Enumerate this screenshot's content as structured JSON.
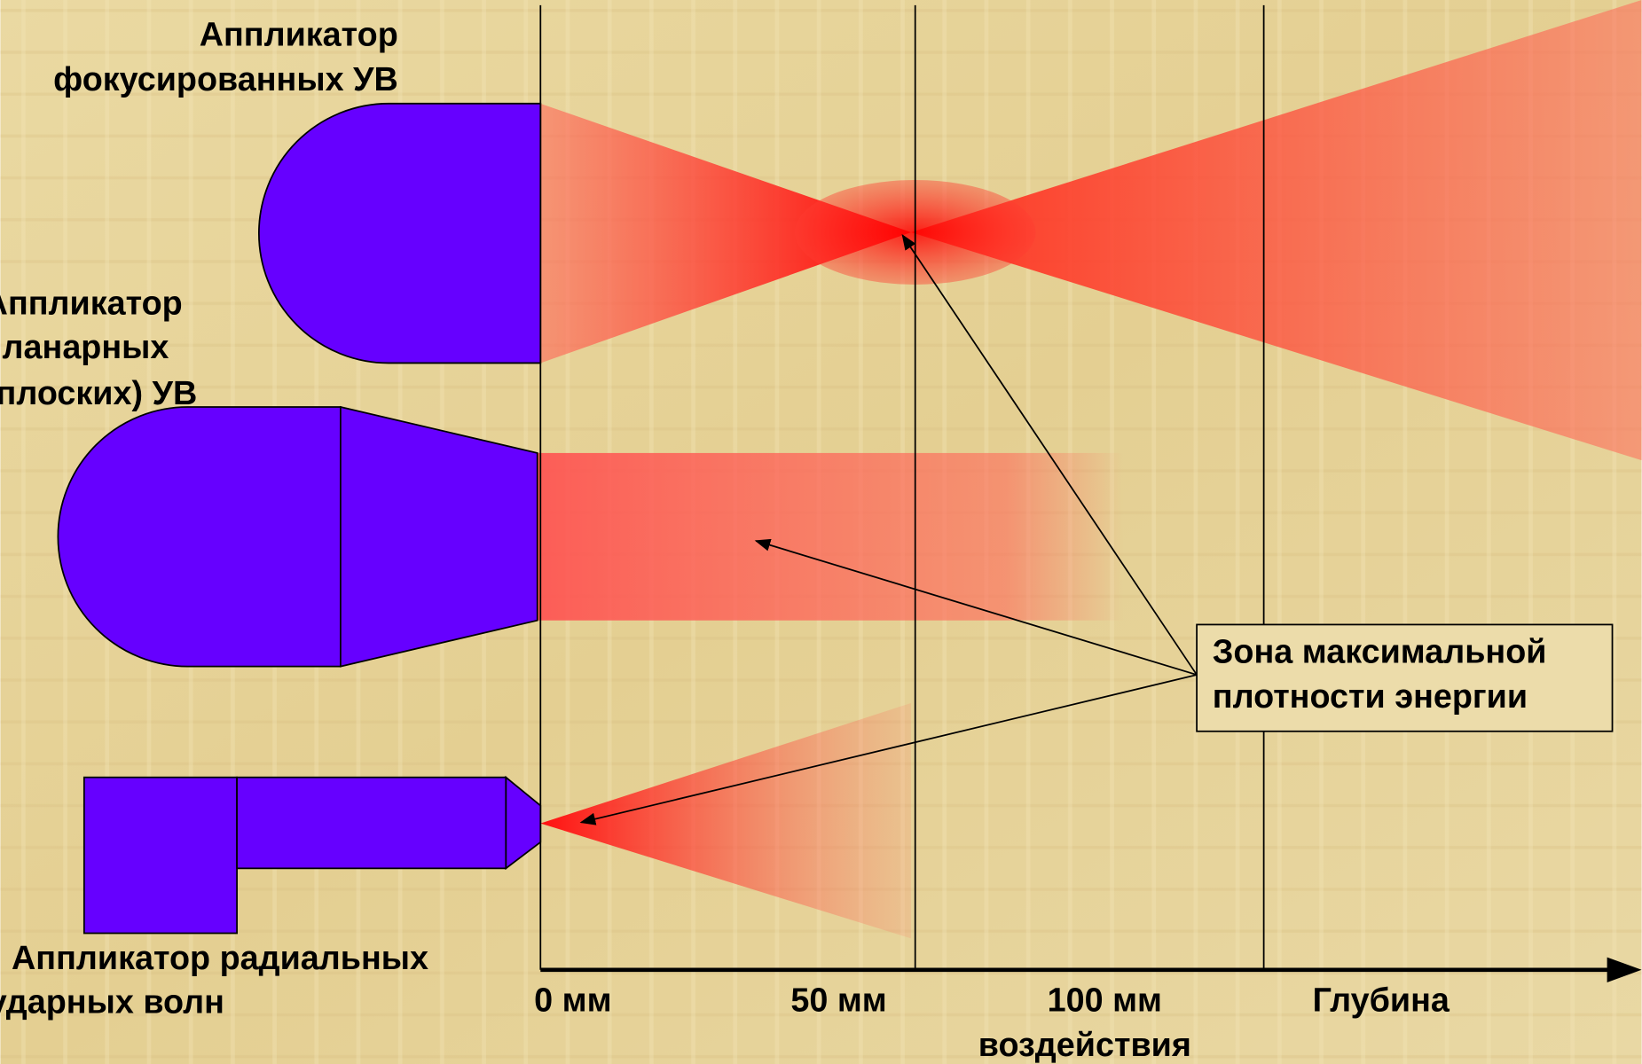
{
  "applicators": [
    {
      "label_lines": [
        "Аппликатор",
        "фокусированных УВ"
      ]
    },
    {
      "label_lines": [
        "Аппликатор",
        "планарных",
        "(плоских) УВ"
      ]
    },
    {
      "label_lines": [
        "Аппликатор радиальных",
        "ударных волн"
      ]
    }
  ],
  "axis": {
    "ticks": [
      "0 мм",
      "50 мм",
      "100 мм"
    ],
    "title_lines": [
      "Глубина",
      "воздействия"
    ]
  },
  "annotation": {
    "lines": [
      "Зона максимальной",
      "плотности энергии"
    ]
  }
}
